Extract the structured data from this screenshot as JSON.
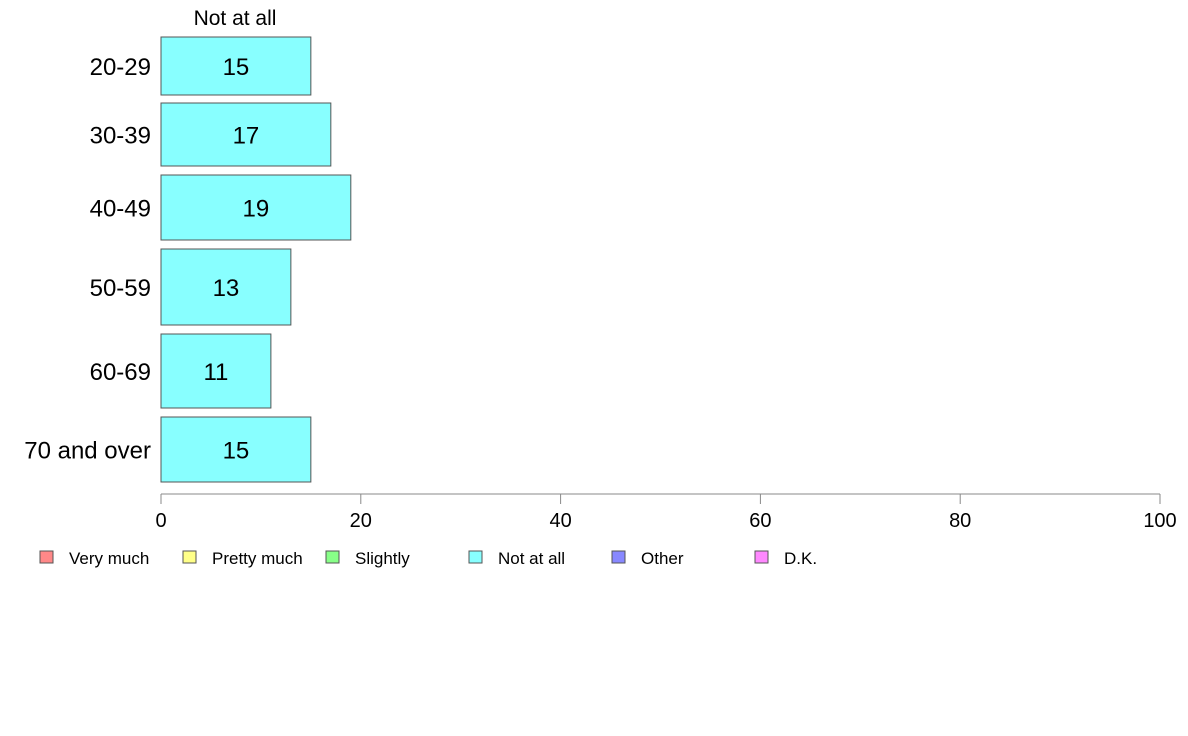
{
  "chart_data": {
    "type": "bar",
    "orientation": "horizontal",
    "series_title": "Not at all",
    "categories": [
      "20-29",
      "30-39",
      "40-49",
      "50-59",
      "60-69",
      "70 and over"
    ],
    "series": [
      {
        "name": "Not at all",
        "values": [
          15,
          17,
          19,
          13,
          11,
          15
        ],
        "color": "#88ffff"
      }
    ],
    "data_labels": [
      "15",
      "17",
      "19",
      "13",
      "11",
      "15"
    ],
    "xlim": [
      0,
      100
    ],
    "xticks": [
      0,
      20,
      40,
      60,
      80,
      100
    ],
    "grid": false,
    "legend": {
      "placement": "bottom-left",
      "items": [
        {
          "label": "Very much",
          "color": "#ff8888"
        },
        {
          "label": "Pretty much",
          "color": "#ffff88"
        },
        {
          "label": "Slightly",
          "color": "#88ff88"
        },
        {
          "label": "Not at all",
          "color": "#88ffff"
        },
        {
          "label": "Other",
          "color": "#8888ff"
        },
        {
          "label": "D.K.",
          "color": "#ff88ff"
        }
      ]
    },
    "bar_stroke": "#555555",
    "axis_color": "#888888"
  }
}
